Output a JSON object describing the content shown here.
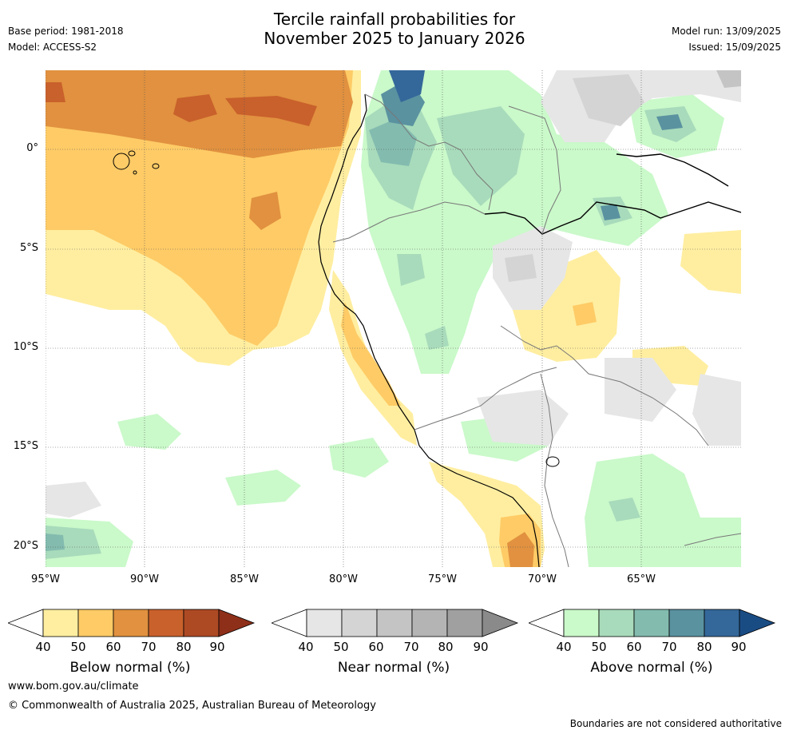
{
  "header": {
    "title_line1": "Tercile rainfall probabilities for",
    "title_line2": "November 2025 to January 2026",
    "base_period": "Base period: 1981-2018",
    "model": "Model: ACCESS-S2",
    "model_run": "Model run: 13/09/2025",
    "issued": "Issued: 15/09/2025"
  },
  "axes": {
    "y_ticks": [
      "0°",
      "5°S",
      "10°S",
      "15°S",
      "20°S"
    ],
    "x_ticks": [
      "95°W",
      "90°W",
      "85°W",
      "80°W",
      "75°W",
      "70°W",
      "65°W"
    ]
  },
  "colorbars": [
    {
      "label": "Below normal (%)",
      "ticks": [
        "40",
        "50",
        "60",
        "70",
        "80",
        "90"
      ],
      "colors": [
        "#ffffff",
        "#ffeea0",
        "#fecb66",
        "#e1913f",
        "#c9612c",
        "#ad4a24",
        "#8e2f19"
      ]
    },
    {
      "label": "Near normal (%)",
      "ticks": [
        "40",
        "50",
        "60",
        "70",
        "80",
        "90"
      ],
      "colors": [
        "#ffffff",
        "#e6e6e6",
        "#d4d4d4",
        "#c4c4c4",
        "#b4b4b4",
        "#a0a0a0",
        "#8a8a8a"
      ]
    },
    {
      "label": "Above normal (%)",
      "ticks": [
        "40",
        "50",
        "60",
        "70",
        "80",
        "90"
      ],
      "colors": [
        "#ffffff",
        "#caf9ca",
        "#a8dbbb",
        "#83bbaf",
        "#5a92a0",
        "#34689a",
        "#1a4c84"
      ]
    }
  ],
  "footer": {
    "website": "www.bom.gov.au/climate",
    "copyright": "© Commonwealth of Australia 2025, Australian Bureau of Meteorology",
    "disclaimer": "Boundaries are not considered authoritative"
  }
}
